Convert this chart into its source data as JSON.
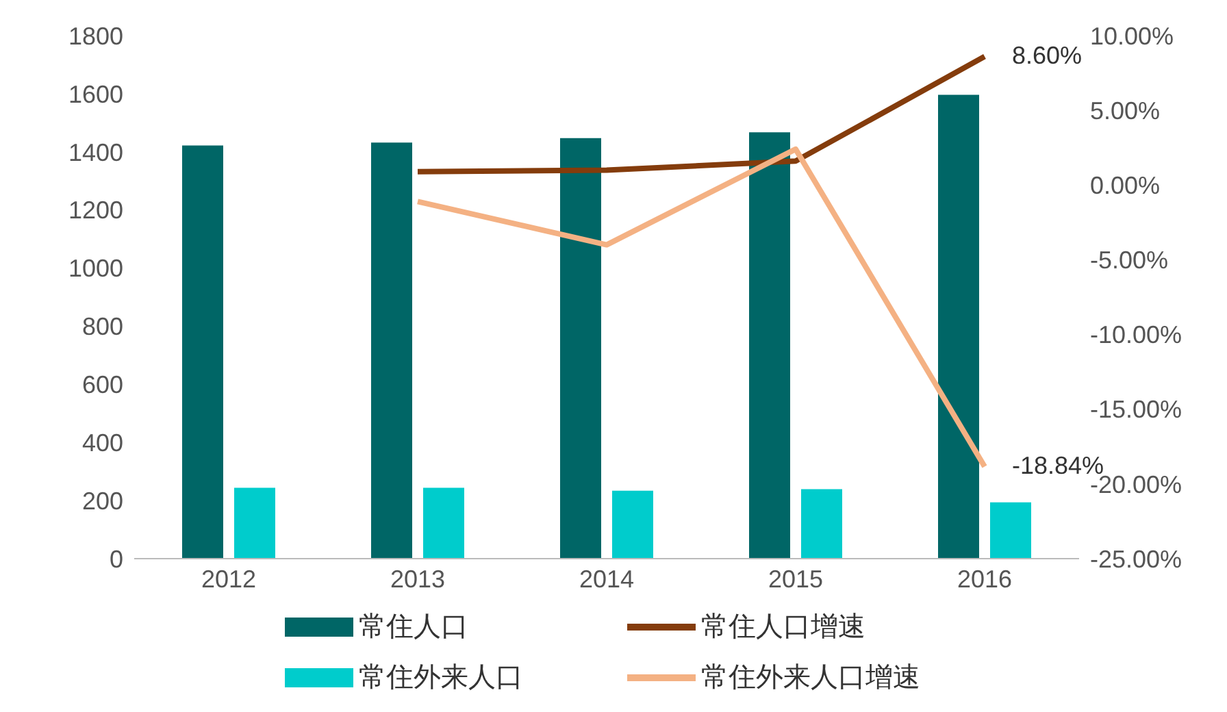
{
  "chart_data": {
    "type": "bar",
    "categories": [
      "2012",
      "2013",
      "2014",
      "2015",
      "2016"
    ],
    "series": [
      {
        "name": "常住人口",
        "color": "#006666",
        "values": [
          1422,
          1432,
          1447,
          1467,
          1596
        ]
      },
      {
        "name": "常住外来人口",
        "color": "#00cccc",
        "values": [
          244,
          244,
          234,
          239,
          194
        ]
      },
      {
        "name": "常住人口增速",
        "type": "line",
        "axis": "y2",
        "color": "#843c0c",
        "values": [
          null,
          0.9,
          1.0,
          1.6,
          8.6
        ],
        "value_labels": [
          null,
          null,
          null,
          null,
          "8.60%"
        ]
      },
      {
        "name": "常住外来人口增速",
        "type": "line",
        "axis": "y2",
        "color": "#f4b183",
        "values": [
          null,
          -1.1,
          -4.0,
          2.4,
          -18.84
        ],
        "value_labels": [
          null,
          null,
          null,
          null,
          "-18.84%"
        ]
      }
    ],
    "ylim": [
      0,
      1800
    ],
    "yticks": [
      0,
      200,
      400,
      600,
      800,
      1000,
      1200,
      1400,
      1600,
      1800
    ],
    "y2lim": [
      -25,
      10
    ],
    "y2ticks": [
      {
        "value": -25,
        "label": "-25.00%"
      },
      {
        "value": -20,
        "label": "-20.00%"
      },
      {
        "value": -15,
        "label": "-15.00%"
      },
      {
        "value": -10,
        "label": "-10.00%"
      },
      {
        "value": -5,
        "label": "-5.00%"
      },
      {
        "value": 0,
        "label": "0.00%"
      },
      {
        "value": 5,
        "label": "5.00%"
      },
      {
        "value": 10,
        "label": "10.00%"
      }
    ],
    "grid": false,
    "legend": "bottom",
    "marker": "none",
    "line_style": "solid"
  }
}
